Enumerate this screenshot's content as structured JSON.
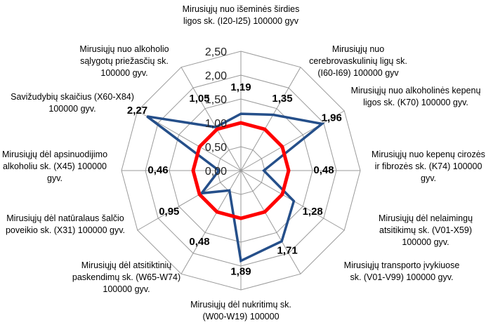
{
  "chart_data": {
    "type": "radar",
    "categories": [
      "Mirusiųjų nuo išeminės širdies ligos sk. (I20-I25) 100000 gyv",
      "Mirusiųjų nuo cerebrovaskulinių ligų sk. (I60-I69) 100000 gyv",
      "Mirusiųjų nuo alkoholinės kepenų ligos sk. (K70) 100000 gyv.",
      "Mirusiųjų nuo kepenų cirozės ir fibrozės sk. (K74) 100000 gyv.",
      "Mirusiųjų dėl nelaimingų atsitikimų sk. (V01-X59) 100000 gyv.",
      "Mirusiųjų transporto įvykiuose sk. (V01-V99) 100000 gyv.",
      "Mirusiųjų dėl nukritimų sk. (W00-W19) 100000",
      "Mirusiųjų dėl atsitiktinių paskendimų sk. (W65-W74) 100000 gyv.",
      "Mirusiųjų dėl natūralaus šalčio poveikio sk. (X31) 100000 gyv.",
      "Mirusiųjų dėl apsinuodijimo alkoholiu sk. (X45) 100000 gyv.",
      "Savižudybių skaičius (X60-X84) 100000 gyv.",
      "Mirusiųjų nuo alkoholio sąlygotų priežasčių sk. 100000 gyv."
    ],
    "series": [
      {
        "color": "#254f8a",
        "values": [
          1.19,
          1.35,
          1.96,
          0.48,
          1.28,
          1.71,
          1.89,
          0.48,
          0.95,
          0.46,
          2.27,
          1.05
        ],
        "value_labels": [
          "1,19",
          "1,35",
          "1,96",
          "0,48",
          "1,28",
          "1,71",
          "1,89",
          "0,48",
          "0,95",
          "0,46",
          "2,27",
          "1,05"
        ]
      },
      {
        "color": "#ff0000",
        "values": [
          1,
          1,
          1,
          1,
          1,
          1,
          1,
          1,
          1,
          1,
          1,
          1
        ]
      }
    ],
    "ylim": [
      0,
      2.5
    ],
    "yticks": [
      {
        "value": 0,
        "label": "0,00"
      },
      {
        "value": 0.5,
        "label": "0,50"
      },
      {
        "value": 1,
        "label": "1,00"
      },
      {
        "value": 1.5,
        "label": "1,50"
      },
      {
        "value": 2,
        "label": "2,00"
      },
      {
        "value": 2.5,
        "label": "2,50"
      }
    ],
    "grid": true
  }
}
